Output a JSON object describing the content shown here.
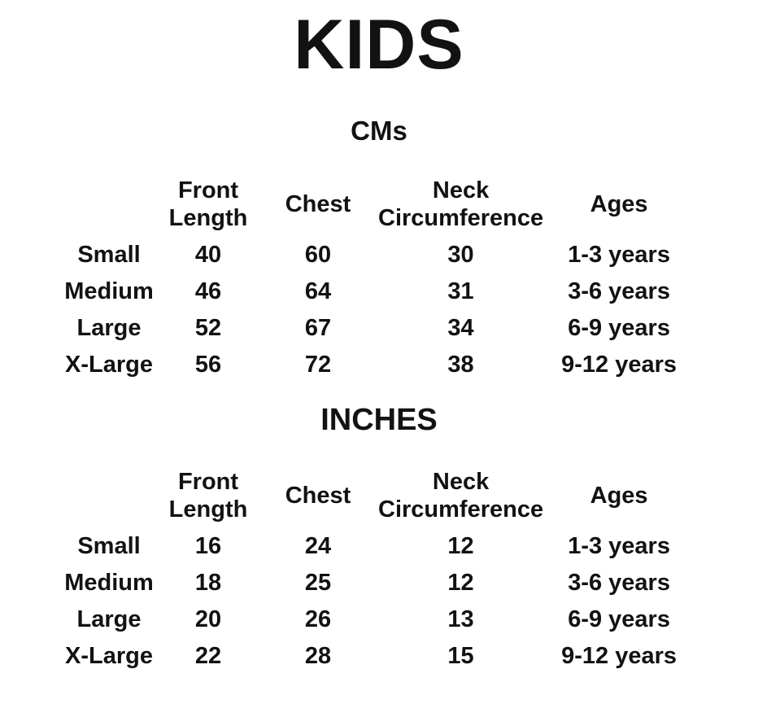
{
  "title": "KIDS",
  "colors": {
    "text": "#121212",
    "background": "#ffffff"
  },
  "sections": [
    {
      "heading": "CMs",
      "columns": [
        {
          "line1": "Front",
          "line2": "Length"
        },
        {
          "line1": "Chest",
          "line2": ""
        },
        {
          "line1": "Neck",
          "line2": "Circumference"
        },
        {
          "line1": "Ages",
          "line2": ""
        }
      ],
      "rows": [
        {
          "size": "Small",
          "front_length": "40",
          "chest": "60",
          "neck_circumference": "30",
          "ages": "1-3 years"
        },
        {
          "size": "Medium",
          "front_length": "46",
          "chest": "64",
          "neck_circumference": "31",
          "ages": "3-6 years"
        },
        {
          "size": "Large",
          "front_length": "52",
          "chest": "67",
          "neck_circumference": "34",
          "ages": "6-9 years"
        },
        {
          "size": "X-Large",
          "front_length": "56",
          "chest": "72",
          "neck_circumference": "38",
          "ages": "9-12 years"
        }
      ]
    },
    {
      "heading": "INCHES",
      "columns": [
        {
          "line1": "Front",
          "line2": "Length"
        },
        {
          "line1": "Chest",
          "line2": ""
        },
        {
          "line1": "Neck",
          "line2": "Circumference"
        },
        {
          "line1": "Ages",
          "line2": ""
        }
      ],
      "rows": [
        {
          "size": "Small",
          "front_length": "16",
          "chest": "24",
          "neck_circumference": "12",
          "ages": "1-3 years"
        },
        {
          "size": "Medium",
          "front_length": "18",
          "chest": "25",
          "neck_circumference": "12",
          "ages": "3-6 years"
        },
        {
          "size": "Large",
          "front_length": "20",
          "chest": "26",
          "neck_circumference": "13",
          "ages": "6-9 years"
        },
        {
          "size": "X-Large",
          "front_length": "22",
          "chest": "28",
          "neck_circumference": "15",
          "ages": "9-12 years"
        }
      ]
    }
  ]
}
